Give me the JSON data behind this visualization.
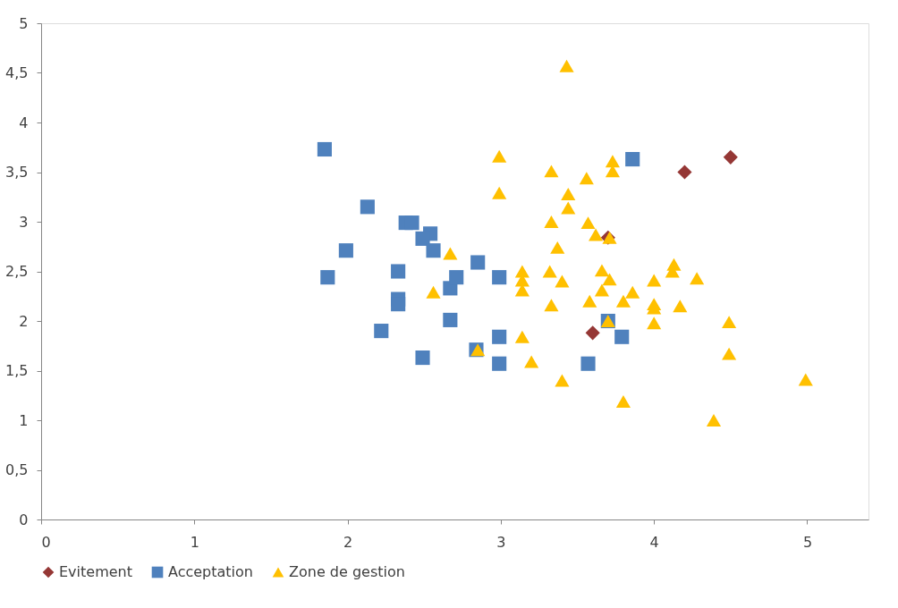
{
  "chart_data": {
    "type": "scatter",
    "xlim": [
      0,
      5.4
    ],
    "ylim": [
      0,
      5
    ],
    "xticks": [
      0,
      1,
      2,
      3,
      4,
      5
    ],
    "yticks": [
      0,
      {
        "value": 0.5,
        "label": "0,5"
      },
      1,
      {
        "value": 1.5,
        "label": "1,5"
      },
      2,
      {
        "value": 2.5,
        "label": "2,5"
      },
      3,
      {
        "value": 3.5,
        "label": "3,5"
      },
      4,
      {
        "value": 4.5,
        "label": "4,5"
      },
      5
    ],
    "grid": false,
    "legend": "bottom",
    "series": [
      {
        "name": "Evitement",
        "color": "#953735",
        "marker": "diamond",
        "x": [
          4.2,
          4.5,
          3.7,
          3.6
        ],
        "values": [
          3.5,
          3.65,
          2.84,
          1.88
        ]
      },
      {
        "name": "Acceptation",
        "color": "#4f81bd",
        "marker": "square",
        "x": [
          1.85,
          2.13,
          1.99,
          1.87,
          2.38,
          2.42,
          2.54,
          2.49,
          2.56,
          2.33,
          2.33,
          2.33,
          2.22,
          2.49,
          2.67,
          2.71,
          2.85,
          2.99,
          2.67,
          2.99,
          2.84,
          2.99,
          3.86,
          3.7,
          3.79,
          3.57
        ],
        "values": [
          3.73,
          3.15,
          2.71,
          2.44,
          2.99,
          2.99,
          2.88,
          2.83,
          2.71,
          2.5,
          2.22,
          2.17,
          1.9,
          1.63,
          2.33,
          2.44,
          2.59,
          2.44,
          2.01,
          1.84,
          1.71,
          1.57,
          3.63,
          2.0,
          1.84,
          1.57
        ]
      },
      {
        "name": "Zone de gestion",
        "color": "#ffc000",
        "marker": "triangle",
        "x": [
          3.43,
          2.99,
          2.99,
          3.33,
          3.73,
          3.73,
          3.56,
          3.44,
          3.44,
          3.33,
          3.57,
          3.37,
          2.67,
          3.62,
          3.71,
          3.14,
          3.14,
          3.14,
          3.32,
          3.4,
          2.56,
          3.66,
          3.71,
          3.66,
          3.58,
          3.86,
          3.8,
          3.33,
          4.0,
          4.0,
          4.0,
          4.0,
          4.13,
          4.12,
          4.28,
          4.17,
          4.49,
          4.49,
          4.99,
          4.39,
          3.8,
          3.4,
          3.2,
          3.14,
          3.7,
          2.85
        ],
        "values": [
          4.57,
          3.66,
          3.29,
          3.51,
          3.61,
          3.51,
          3.44,
          3.28,
          3.14,
          3.0,
          2.99,
          2.74,
          2.68,
          2.87,
          2.84,
          2.5,
          2.41,
          2.31,
          2.5,
          2.4,
          2.29,
          2.51,
          2.42,
          2.31,
          2.2,
          2.29,
          2.2,
          2.16,
          2.41,
          2.17,
          2.13,
          1.98,
          2.57,
          2.5,
          2.43,
          2.15,
          1.99,
          1.67,
          1.41,
          1.0,
          1.19,
          1.4,
          1.59,
          1.84,
          2.0,
          1.71
        ]
      }
    ]
  }
}
